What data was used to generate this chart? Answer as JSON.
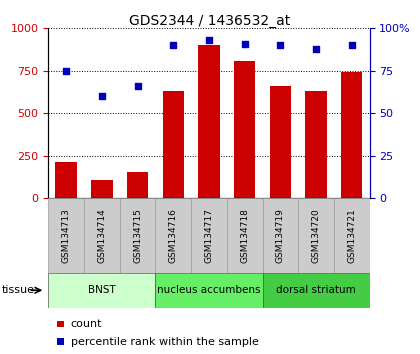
{
  "title": "GDS2344 / 1436532_at",
  "samples": [
    "GSM134713",
    "GSM134714",
    "GSM134715",
    "GSM134716",
    "GSM134717",
    "GSM134718",
    "GSM134719",
    "GSM134720",
    "GSM134721"
  ],
  "counts": [
    215,
    110,
    155,
    630,
    900,
    810,
    660,
    630,
    740
  ],
  "percentiles": [
    75,
    60,
    66,
    90,
    93,
    91,
    90,
    88,
    90
  ],
  "bar_color": "#cc0000",
  "dot_color": "#0000bb",
  "ylim_left": [
    0,
    1000
  ],
  "ylim_right": [
    0,
    100
  ],
  "yticks_left": [
    0,
    250,
    500,
    750,
    1000
  ],
  "yticks_right": [
    0,
    25,
    50,
    75,
    100
  ],
  "groups": [
    {
      "label": "BNST",
      "start": 0,
      "end": 3,
      "color": "#ccffcc"
    },
    {
      "label": "nucleus accumbens",
      "start": 3,
      "end": 6,
      "color": "#66ee66"
    },
    {
      "label": "dorsal striatum",
      "start": 6,
      "end": 9,
      "color": "#44cc44"
    }
  ],
  "tissue_label": "tissue",
  "legend_count_label": "count",
  "legend_pct_label": "percentile rank within the sample",
  "bg_color": "#ffffff",
  "left_tick_color": "#cc0000",
  "right_tick_color": "#0000bb",
  "xlabel_bg": "#cccccc",
  "xlabel_edge": "#999999"
}
